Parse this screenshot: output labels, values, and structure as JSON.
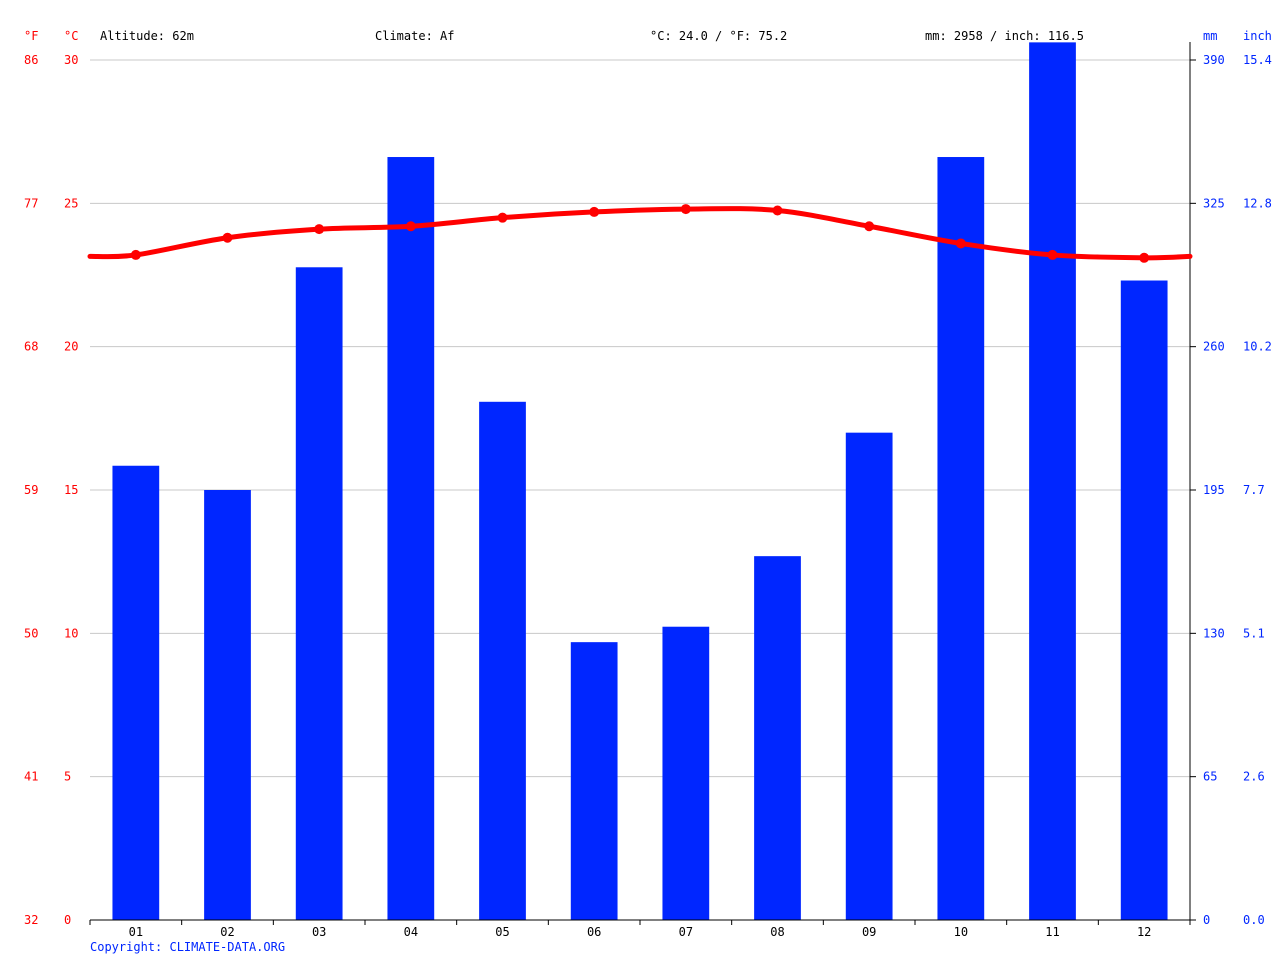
{
  "header": {
    "altitude": "Altitude: 62m",
    "climate": "Climate: Af",
    "temperature": "°C: 24.0 / °F: 75.2",
    "precipitation": "mm: 2958 / inch: 116.5"
  },
  "axis_units": {
    "fahrenheit": "°F",
    "celsius": "°C",
    "mm": "mm",
    "inch": "inch"
  },
  "copyright": "Copyright: CLIMATE-DATA.ORG",
  "colors": {
    "temperature": "#ff0000",
    "precipitation": "#0026ff",
    "grid": "#c8c8c8",
    "axis": "#000000"
  },
  "chart_data": {
    "type": "bar",
    "categories": [
      "01",
      "02",
      "03",
      "04",
      "05",
      "06",
      "07",
      "08",
      "09",
      "10",
      "11",
      "12"
    ],
    "series": [
      {
        "type": "bar",
        "axis": "right",
        "unit": "mm",
        "values": [
          206,
          195,
          296,
          346,
          235,
          126,
          133,
          165,
          221,
          346,
          398,
          290
        ]
      },
      {
        "type": "line",
        "axis": "left",
        "unit": "°C",
        "values": [
          23.2,
          23.8,
          24.1,
          24.2,
          24.5,
          24.7,
          24.8,
          24.75,
          24.2,
          23.6,
          23.2,
          23.1
        ]
      }
    ],
    "y_left": {
      "unit": "°C",
      "range": [
        0,
        30
      ],
      "ticks": [
        "0",
        "5",
        "10",
        "15",
        "20",
        "25",
        "30"
      ],
      "fahrenheit_ticks": [
        "32",
        "41",
        "50",
        "59",
        "68",
        "77",
        "86"
      ]
    },
    "y_right": {
      "unit": "mm",
      "range": [
        0,
        390
      ],
      "ticks": [
        "0",
        "65",
        "130",
        "195",
        "260",
        "325",
        "390"
      ],
      "inch_ticks": [
        "0.0",
        "2.6",
        "5.1",
        "7.7",
        "10.2",
        "12.8",
        "15.4"
      ]
    },
    "grid": true
  }
}
